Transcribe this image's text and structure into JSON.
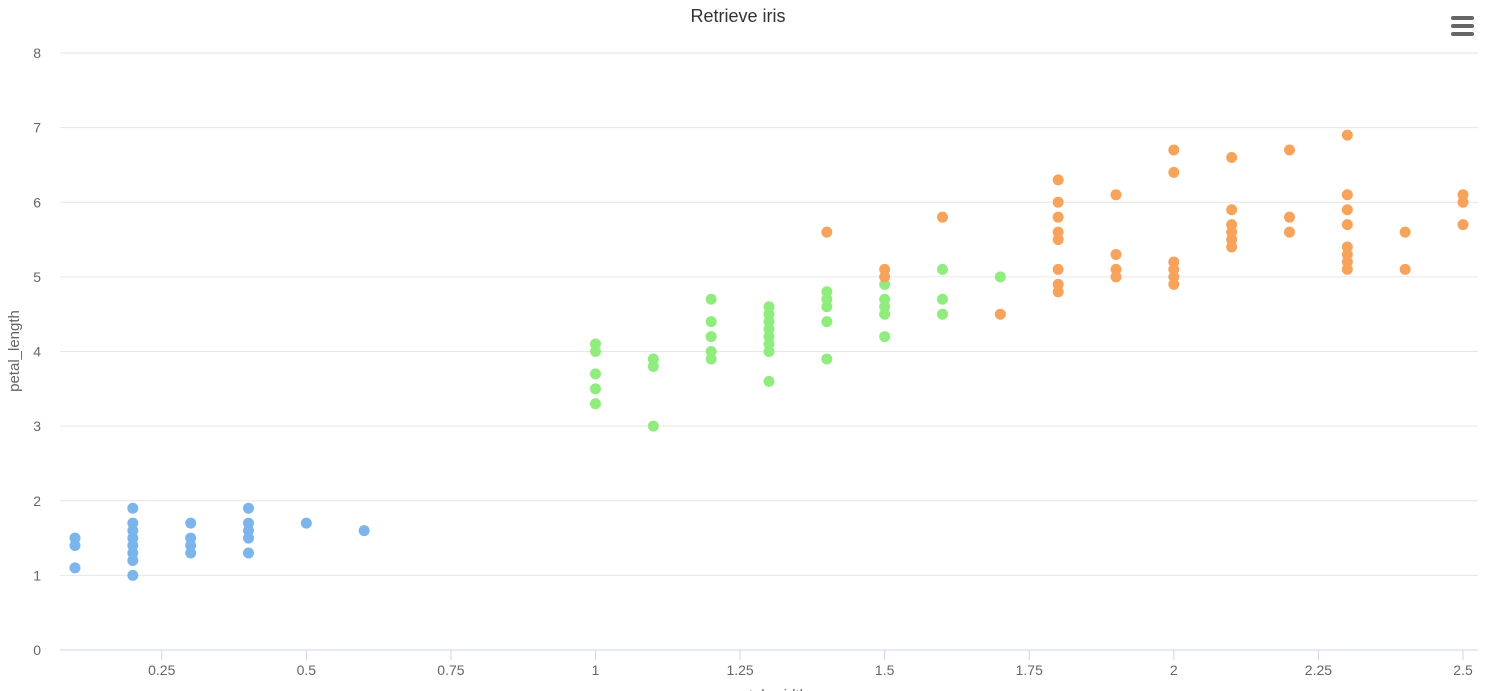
{
  "chart_data": {
    "type": "scatter",
    "title": "Retrieve iris",
    "xlabel": "petal_width",
    "ylabel": "petal_length",
    "xlim": [
      0.1,
      2.5
    ],
    "ylim": [
      0,
      8
    ],
    "x_ticks": [
      "0.25",
      "0.5",
      "0.75",
      "1",
      "1.25",
      "1.5",
      "1.75",
      "2",
      "2.25",
      "2.5"
    ],
    "y_ticks": [
      "0",
      "1",
      "2",
      "3",
      "4",
      "5",
      "6",
      "7",
      "8"
    ],
    "grid": true,
    "legend": "none",
    "series": [
      {
        "color": "#7cb5ec",
        "points": [
          [
            0.1,
            1.5
          ],
          [
            0.1,
            1.4
          ],
          [
            0.1,
            1.1
          ],
          [
            0.2,
            1.9
          ],
          [
            0.2,
            1.7
          ],
          [
            0.2,
            1.6
          ],
          [
            0.2,
            1.5
          ],
          [
            0.2,
            1.4
          ],
          [
            0.2,
            1.3
          ],
          [
            0.2,
            1.2
          ],
          [
            0.2,
            1.0
          ],
          [
            0.3,
            1.7
          ],
          [
            0.3,
            1.5
          ],
          [
            0.3,
            1.4
          ],
          [
            0.3,
            1.3
          ],
          [
            0.4,
            1.9
          ],
          [
            0.4,
            1.7
          ],
          [
            0.4,
            1.6
          ],
          [
            0.4,
            1.5
          ],
          [
            0.4,
            1.3
          ],
          [
            0.5,
            1.7
          ],
          [
            0.6,
            1.6
          ]
        ]
      },
      {
        "color": "#90ed7d",
        "points": [
          [
            1.0,
            4.1
          ],
          [
            1.0,
            4.0
          ],
          [
            1.0,
            3.7
          ],
          [
            1.0,
            3.5
          ],
          [
            1.0,
            3.3
          ],
          [
            1.1,
            3.9
          ],
          [
            1.1,
            3.8
          ],
          [
            1.1,
            3.0
          ],
          [
            1.2,
            4.7
          ],
          [
            1.2,
            4.4
          ],
          [
            1.2,
            4.2
          ],
          [
            1.2,
            4.0
          ],
          [
            1.2,
            3.9
          ],
          [
            1.3,
            4.6
          ],
          [
            1.3,
            4.5
          ],
          [
            1.3,
            4.4
          ],
          [
            1.3,
            4.3
          ],
          [
            1.3,
            4.2
          ],
          [
            1.3,
            4.1
          ],
          [
            1.3,
            4.0
          ],
          [
            1.3,
            3.6
          ],
          [
            1.4,
            4.8
          ],
          [
            1.4,
            4.7
          ],
          [
            1.4,
            4.6
          ],
          [
            1.4,
            4.4
          ],
          [
            1.4,
            3.9
          ],
          [
            1.5,
            4.9
          ],
          [
            1.5,
            4.7
          ],
          [
            1.5,
            4.6
          ],
          [
            1.5,
            4.5
          ],
          [
            1.5,
            4.2
          ],
          [
            1.6,
            5.1
          ],
          [
            1.6,
            4.7
          ],
          [
            1.6,
            4.5
          ],
          [
            1.7,
            5.0
          ]
        ]
      },
      {
        "color": "#f7a35c",
        "points": [
          [
            1.4,
            5.6
          ],
          [
            1.5,
            5.1
          ],
          [
            1.5,
            5.0
          ],
          [
            1.6,
            5.8
          ],
          [
            1.7,
            4.5
          ],
          [
            1.8,
            6.3
          ],
          [
            1.8,
            6.0
          ],
          [
            1.8,
            5.8
          ],
          [
            1.8,
            5.6
          ],
          [
            1.8,
            5.5
          ],
          [
            1.8,
            5.1
          ],
          [
            1.8,
            4.9
          ],
          [
            1.8,
            4.8
          ],
          [
            1.9,
            6.1
          ],
          [
            1.9,
            5.3
          ],
          [
            1.9,
            5.1
          ],
          [
            1.9,
            5.0
          ],
          [
            2.0,
            6.7
          ],
          [
            2.0,
            6.4
          ],
          [
            2.0,
            5.2
          ],
          [
            2.0,
            5.1
          ],
          [
            2.0,
            5.0
          ],
          [
            2.0,
            4.9
          ],
          [
            2.1,
            6.6
          ],
          [
            2.1,
            5.9
          ],
          [
            2.1,
            5.7
          ],
          [
            2.1,
            5.6
          ],
          [
            2.1,
            5.5
          ],
          [
            2.1,
            5.4
          ],
          [
            2.2,
            6.7
          ],
          [
            2.2,
            5.8
          ],
          [
            2.2,
            5.6
          ],
          [
            2.3,
            6.9
          ],
          [
            2.3,
            6.1
          ],
          [
            2.3,
            5.9
          ],
          [
            2.3,
            5.7
          ],
          [
            2.3,
            5.4
          ],
          [
            2.3,
            5.3
          ],
          [
            2.3,
            5.2
          ],
          [
            2.3,
            5.1
          ],
          [
            2.4,
            5.6
          ],
          [
            2.4,
            5.1
          ],
          [
            2.5,
            6.1
          ],
          [
            2.5,
            6.0
          ],
          [
            2.5,
            5.7
          ]
        ]
      }
    ]
  },
  "icons": {
    "menu": "hamburger-menu-icon"
  }
}
